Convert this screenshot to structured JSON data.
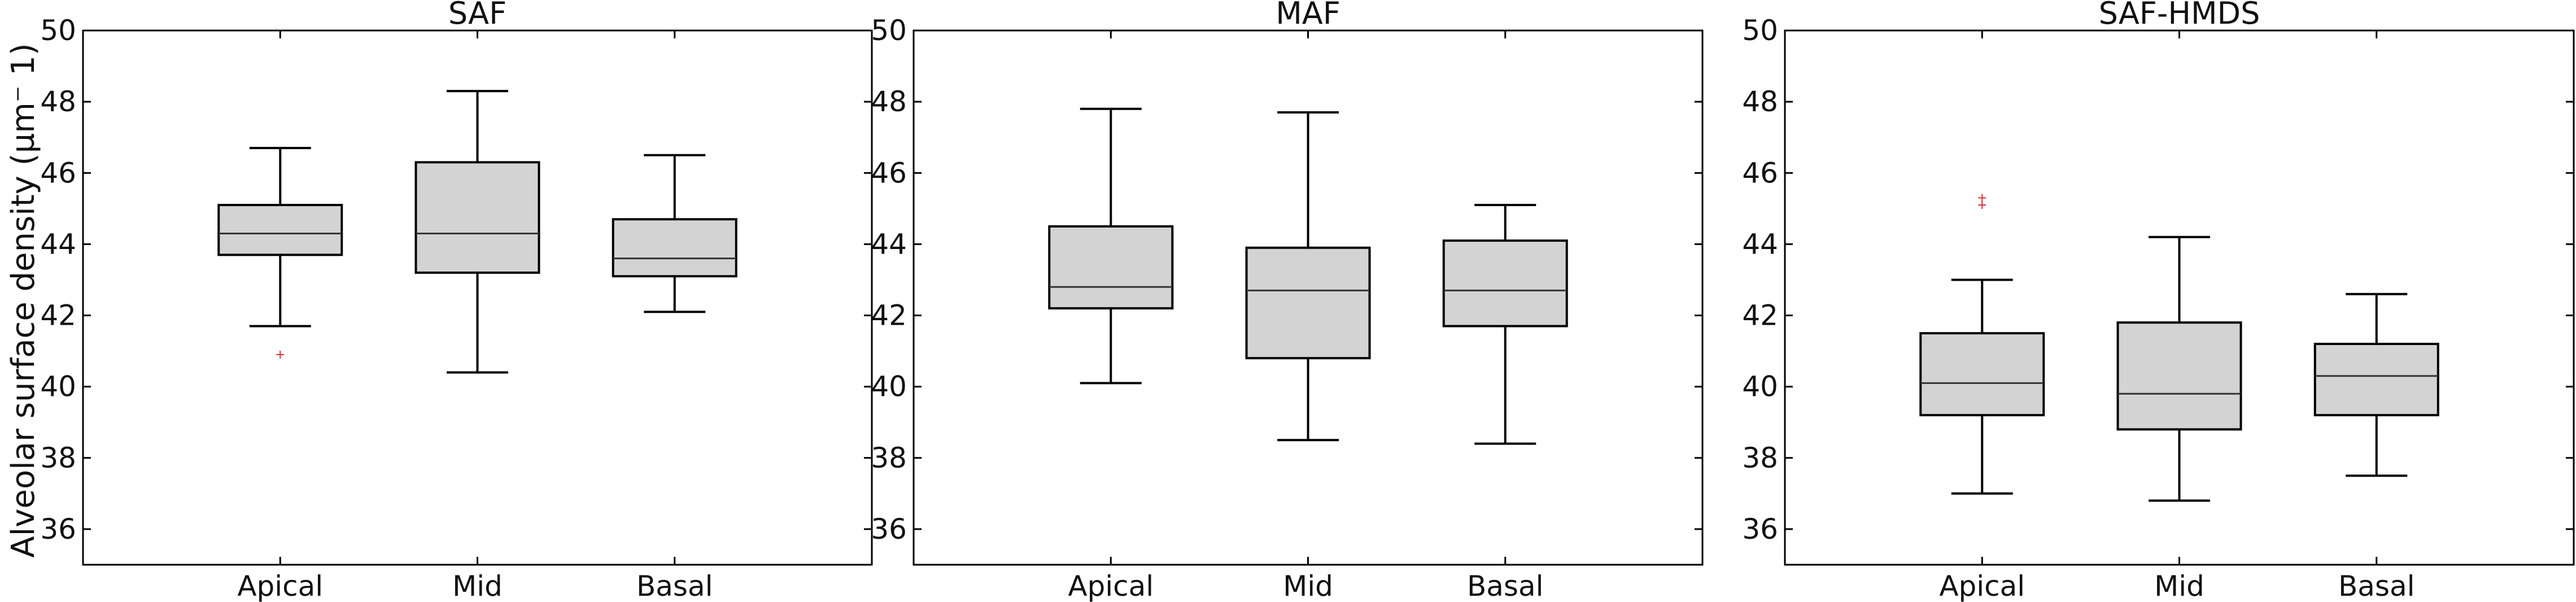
{
  "figure": {
    "ylabel": "Alveolar surface density (µm⁻ 1)"
  },
  "style": {
    "box_fill": "#d3d3d3",
    "line_color": "#000000",
    "outlier_color": "#cc3333"
  },
  "chart_data": [
    {
      "type": "box",
      "title": "SAF",
      "categories": [
        "Apical",
        "Mid",
        "Basal"
      ],
      "ylim": [
        35,
        50
      ],
      "yticks": [
        36,
        38,
        40,
        42,
        44,
        46,
        48,
        50
      ],
      "boxes": [
        {
          "label": "Apical",
          "whisker_low": 41.7,
          "q1": 43.7,
          "median": 44.3,
          "q3": 45.1,
          "whisker_high": 46.7,
          "outliers": [
            40.9
          ]
        },
        {
          "label": "Mid",
          "whisker_low": 40.4,
          "q1": 43.2,
          "median": 44.3,
          "q3": 46.3,
          "whisker_high": 48.3,
          "outliers": []
        },
        {
          "label": "Basal",
          "whisker_low": 42.1,
          "q1": 43.1,
          "median": 43.6,
          "q3": 44.7,
          "whisker_high": 46.5,
          "outliers": []
        }
      ]
    },
    {
      "type": "box",
      "title": "MAF",
      "categories": [
        "Apical",
        "Mid",
        "Basal"
      ],
      "ylim": [
        35,
        50
      ],
      "yticks": [
        36,
        38,
        40,
        42,
        44,
        46,
        48,
        50
      ],
      "boxes": [
        {
          "label": "Apical",
          "whisker_low": 40.1,
          "q1": 42.2,
          "median": 42.8,
          "q3": 44.5,
          "whisker_high": 47.8,
          "outliers": []
        },
        {
          "label": "Mid",
          "whisker_low": 38.5,
          "q1": 40.8,
          "median": 42.7,
          "q3": 43.9,
          "whisker_high": 47.7,
          "outliers": []
        },
        {
          "label": "Basal",
          "whisker_low": 38.4,
          "q1": 41.7,
          "median": 42.7,
          "q3": 44.1,
          "whisker_high": 45.1,
          "outliers": []
        }
      ]
    },
    {
      "type": "box",
      "title": "SAF-HMDS",
      "categories": [
        "Apical",
        "Mid",
        "Basal"
      ],
      "ylim": [
        35,
        50
      ],
      "yticks": [
        36,
        38,
        40,
        42,
        44,
        46,
        48,
        50
      ],
      "boxes": [
        {
          "label": "Apical",
          "whisker_low": 37.0,
          "q1": 39.2,
          "median": 40.1,
          "q3": 41.5,
          "whisker_high": 43.0,
          "outliers": [
            45.1,
            45.3
          ]
        },
        {
          "label": "Mid",
          "whisker_low": 36.8,
          "q1": 38.8,
          "median": 39.8,
          "q3": 41.8,
          "whisker_high": 44.2,
          "outliers": []
        },
        {
          "label": "Basal",
          "whisker_low": 37.5,
          "q1": 39.2,
          "median": 40.3,
          "q3": 41.2,
          "whisker_high": 42.6,
          "outliers": []
        }
      ]
    }
  ]
}
